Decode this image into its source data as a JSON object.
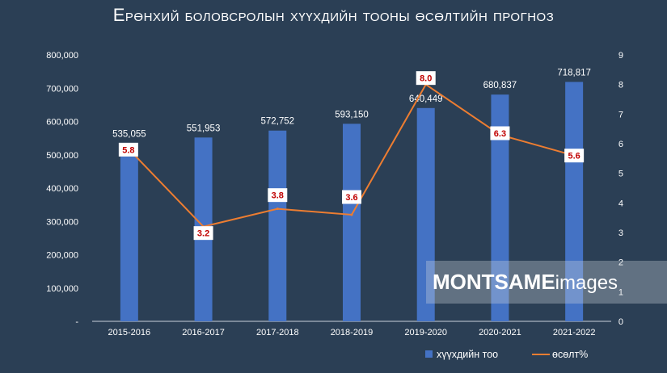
{
  "chart_data": {
    "type": "bar",
    "title": "Ерөнхий боловсролын хүүхдийн тооны өсөлтийн прогноз",
    "categories": [
      "2015-2016",
      "2016-2017",
      "2017-2018",
      "2018-2019",
      "2019-2020",
      "2020-2021",
      "2021-2022"
    ],
    "series": [
      {
        "name": "хүүхдийн тоо",
        "type": "bar",
        "axis": "left",
        "color": "#4472c4",
        "values": [
          535055,
          551953,
          572752,
          593150,
          640449,
          680837,
          718817
        ],
        "labels": [
          "535,055",
          "551,953",
          "572,752",
          "593,150",
          "640,449",
          "680,837",
          "718,817"
        ]
      },
      {
        "name": "өсөлт%",
        "type": "line",
        "axis": "right",
        "color": "#ed7d31",
        "values": [
          5.8,
          3.2,
          3.8,
          3.6,
          8.0,
          6.3,
          5.6
        ],
        "labels": [
          "5.8",
          "3.2",
          "3.8",
          "3.6",
          "8.0",
          "6.3",
          "5.6"
        ]
      }
    ],
    "y_left": {
      "ylim": [
        0,
        800000
      ],
      "ticks": [
        0,
        100000,
        200000,
        300000,
        400000,
        500000,
        600000,
        700000,
        800000
      ],
      "tick_labels": [
        "-",
        "100,000",
        "200,000",
        "300,000",
        "400,000",
        "500,000",
        "600,000",
        "700,000",
        "800,000"
      ]
    },
    "y_right": {
      "ylim": [
        0,
        9
      ],
      "ticks": [
        0,
        1,
        2,
        3,
        4,
        5,
        6,
        7,
        8,
        9
      ],
      "tick_labels": [
        "0",
        "1",
        "2",
        "3",
        "4",
        "5",
        "6",
        "7",
        "8",
        "9"
      ]
    },
    "grid": false,
    "legend_position": "bottom-right"
  },
  "watermark": {
    "bold": "MONTSAME",
    "regular": "images"
  },
  "colors": {
    "background": "#2b3f55",
    "point_label": "#c00000"
  }
}
